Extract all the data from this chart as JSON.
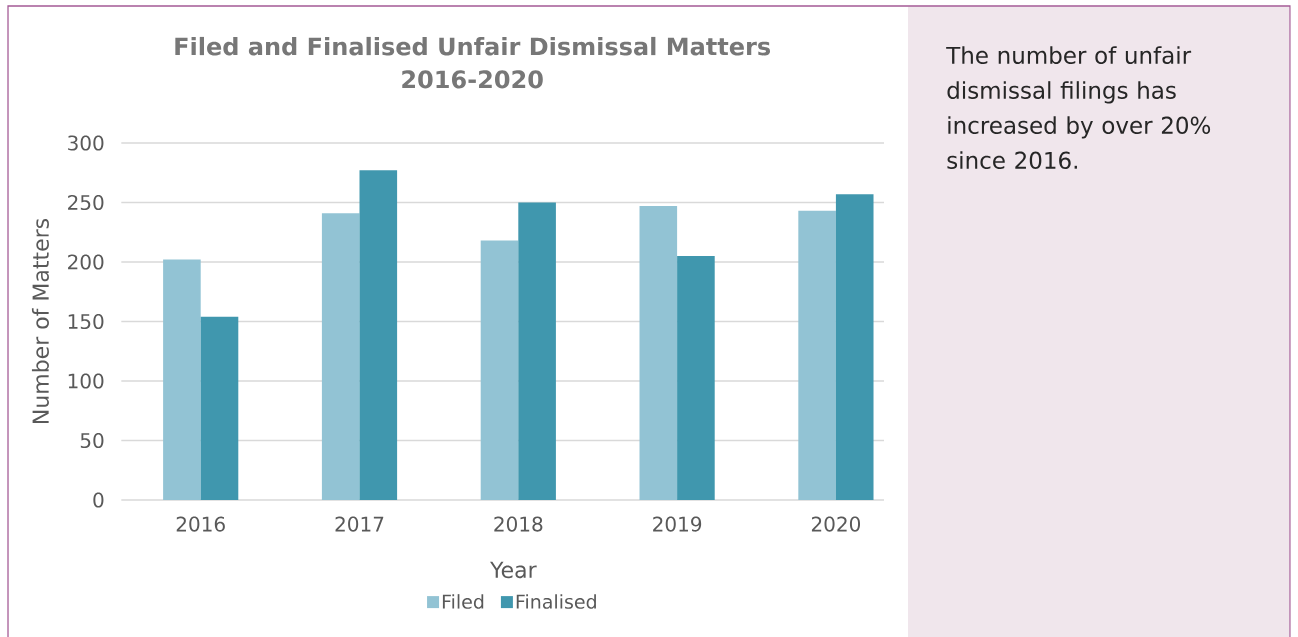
{
  "chart_data": {
    "type": "bar",
    "title": "Filed and Finalised Unfair Dismissal Matters 2016-2020",
    "xlabel": "Year",
    "ylabel": "Number of Matters",
    "categories": [
      "2016",
      "2017",
      "2018",
      "2019",
      "2020"
    ],
    "series": [
      {
        "name": "Filed",
        "color": "#92c3d4",
        "values": [
          202,
          241,
          218,
          247,
          243
        ]
      },
      {
        "name": "Finalised",
        "color": "#4097ae",
        "values": [
          154,
          277,
          250,
          205,
          257
        ]
      }
    ],
    "ylim": [
      0,
      300
    ],
    "yticks": [
      0,
      50,
      100,
      150,
      200,
      250,
      300
    ],
    "grid": "y",
    "legend": "bottom",
    "annotations": [
      "The number of unfair dismissal filings has increased by over 20% since 2016."
    ]
  }
}
